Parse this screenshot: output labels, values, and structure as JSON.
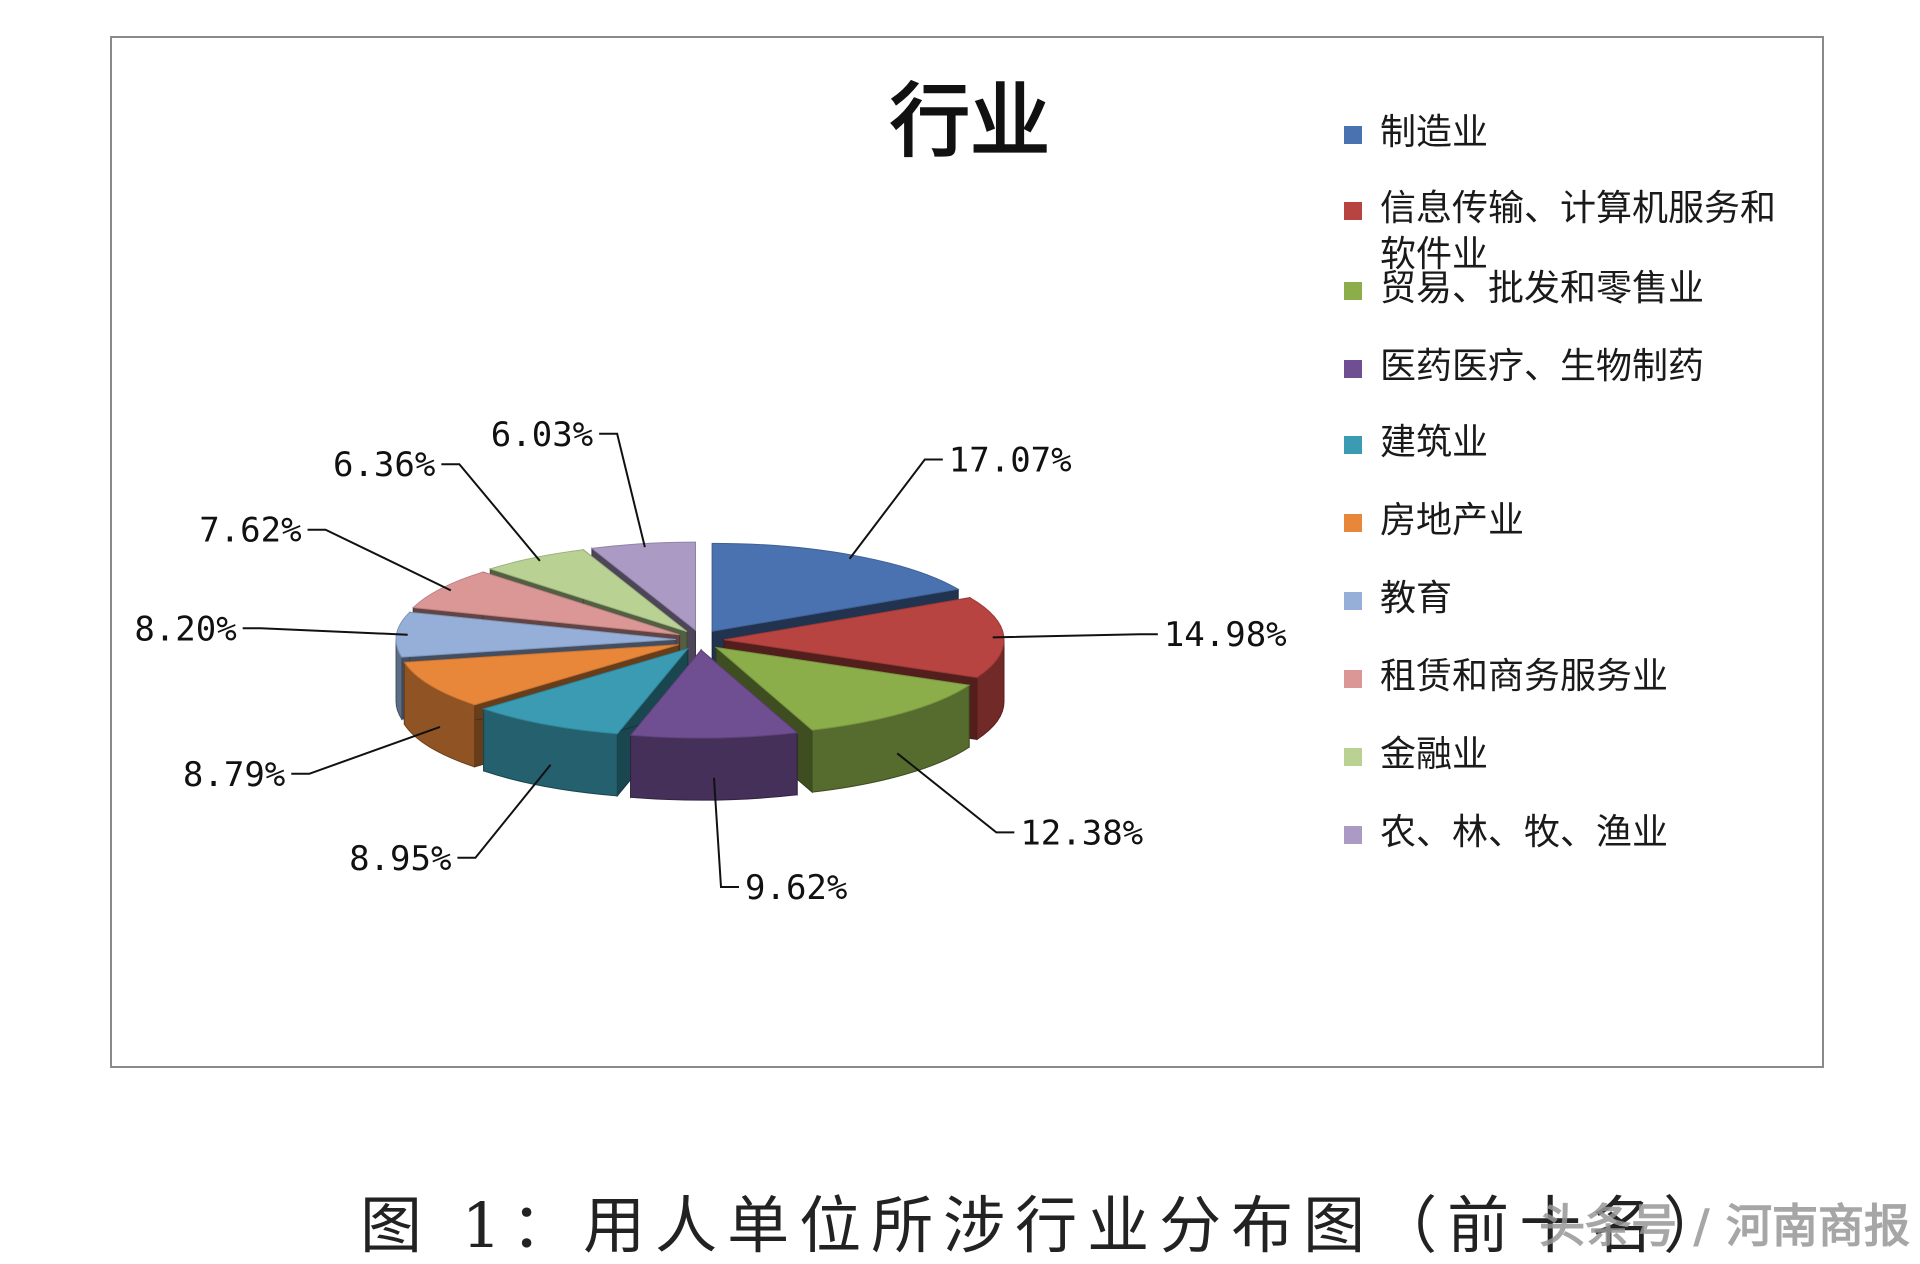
{
  "chart_data": {
    "type": "pie",
    "title": "行业",
    "categories": [
      "制造业",
      "信息传输、计算机服务和软件业",
      "贸易、批发和零售业",
      "医药医疗、生物制药",
      "建筑业",
      "房地产业",
      "教育",
      "租赁和商务服务业",
      "金融业",
      "农、林、牧、渔业"
    ],
    "values": [
      17.07,
      14.98,
      12.38,
      9.62,
      8.95,
      8.79,
      8.2,
      7.62,
      6.36,
      6.03
    ],
    "data_labels": [
      "17.07%",
      "14.98%",
      "12.38%",
      "9.62%",
      "8.95%",
      "8.79%",
      "8.20%",
      "7.62%",
      "6.36%",
      "6.03%"
    ],
    "colors": [
      "#4a72b0",
      "#b84441",
      "#8bad4a",
      "#6f4e91",
      "#3a9bb2",
      "#e8873a",
      "#95afd8",
      "#db9796",
      "#b9d294",
      "#aa9ac4"
    ],
    "exploded": true,
    "three_d": true,
    "legend_position": "right"
  },
  "caption": "图 1：用人单位所涉行业分布图（前十名）",
  "watermark": "头条号 / 河南商报"
}
